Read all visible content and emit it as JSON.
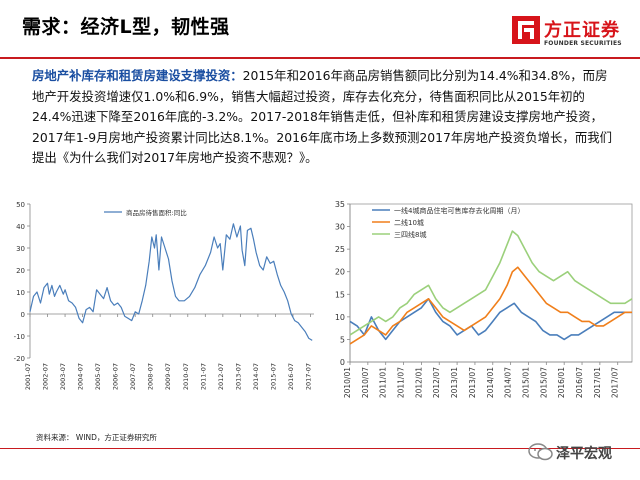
{
  "page": {
    "title": "需求：经济L型，韧性强",
    "logo": {
      "cn": "方正证券",
      "en": "FOUNDER SECURITIES"
    },
    "paragraph": {
      "highlight": "房地产补库存和租赁房建设支撑投资：",
      "body": "2015年和2016年商品房销售额同比分别为14.4%和34.8%，而房地产开发投资增速仅1.0%和6.9%，销售大幅超过投资，库存去化充分，待售面积同比从2015年初的24.4%迅速下降至2016年底的-3.2%。2017-2018年销售走低，但补库和租赁房建设支撑房地产投资，2017年1-9月房地产投资累计同比达8.1%。2016年底市场上多数预测2017年房地产投资负增长，而我们提出《为什么我们对2017年房地产投资不悲观？》。"
    },
    "source": "资料来源： WIND，方正证券研究所",
    "watermark": "泽平宏观"
  },
  "colors": {
    "brand": "#c81a1f",
    "highlight": "#1a4ea1",
    "s1": "#4a7ebb",
    "s2": "#f07f1b",
    "s3": "#9bd07b"
  },
  "chart_data": [
    {
      "type": "line",
      "title": "",
      "ylim": [
        -20,
        50
      ],
      "yticks": [
        -20,
        -10,
        0,
        10,
        20,
        30,
        40,
        50
      ],
      "xticks": [
        "2001-07",
        "2002-07",
        "2003-07",
        "2004-07",
        "2005-07",
        "2006-07",
        "2007-07",
        "2008-07",
        "2009-07",
        "2010-07",
        "2011-07",
        "2012-07",
        "2013-07",
        "2014-07",
        "2015-07",
        "2016-07",
        "2017-07"
      ],
      "xlim": [
        2001.5,
        2017.7
      ],
      "series": [
        {
          "name": "商品房待售面积:同比",
          "x": [
            2001.5,
            2001.7,
            2001.9,
            2002.1,
            2002.3,
            2002.5,
            2002.6,
            2002.75,
            2002.9,
            2003.0,
            2003.2,
            2003.4,
            2003.5,
            2003.7,
            2003.9,
            2004.1,
            2004.3,
            2004.5,
            2004.7,
            2004.9,
            2005.1,
            2005.3,
            2005.5,
            2005.7,
            2005.9,
            2006.1,
            2006.3,
            2006.5,
            2006.7,
            2006.9,
            2007.1,
            2007.3,
            2007.5,
            2007.7,
            2007.9,
            2008.1,
            2008.3,
            2008.45,
            2008.6,
            2008.7,
            2008.85,
            2009.0,
            2009.2,
            2009.4,
            2009.6,
            2009.8,
            2010.0,
            2010.3,
            2010.6,
            2010.9,
            2011.2,
            2011.5,
            2011.8,
            2012.0,
            2012.2,
            2012.35,
            2012.5,
            2012.7,
            2012.9,
            2013.1,
            2013.3,
            2013.5,
            2013.6,
            2013.75,
            2013.9,
            2014.1,
            2014.25,
            2014.4,
            2014.6,
            2014.8,
            2015.0,
            2015.2,
            2015.4,
            2015.6,
            2015.8,
            2016.0,
            2016.2,
            2016.4,
            2016.6,
            2016.8,
            2017.0,
            2017.2,
            2017.4,
            2017.6
          ],
          "values": [
            1,
            8,
            10,
            5,
            12,
            14,
            9,
            13,
            8,
            10,
            13,
            9,
            11,
            6,
            5,
            3,
            -2,
            -4,
            2,
            3,
            1,
            11,
            9,
            7,
            12,
            6,
            4,
            5,
            3,
            -1,
            -2,
            -3,
            1,
            0,
            6,
            13,
            24,
            35,
            30,
            36,
            20,
            35,
            30,
            25,
            15,
            8,
            6,
            6,
            8,
            12,
            18,
            22,
            28,
            35,
            30,
            32,
            20,
            36,
            34,
            41,
            35,
            40,
            29,
            22,
            38,
            39,
            34,
            28,
            22,
            20,
            26,
            23,
            24,
            18,
            13,
            10,
            6,
            0,
            -3,
            -4,
            -6,
            -8,
            -11,
            -12
          ]
        }
      ]
    },
    {
      "type": "line",
      "title": "",
      "ylim": [
        0,
        35
      ],
      "yticks": [
        0,
        5,
        10,
        15,
        20,
        25,
        30,
        35
      ],
      "xticks": [
        "2010/01",
        "2010/07",
        "2011/01",
        "2011/07",
        "2012/01",
        "2012/07",
        "2013/01",
        "2013/07",
        "2014/01",
        "2014/07",
        "2015/01",
        "2015/07",
        "2016/01",
        "2016/07",
        "2017/01",
        "2017/07"
      ],
      "xlim": [
        2010.0,
        2017.9
      ],
      "series": [
        {
          "name": "一线4城商品住宅可售库存去化周期（月）",
          "x": [
            2010.0,
            2010.2,
            2010.4,
            2010.5,
            2010.6,
            2010.8,
            2011.0,
            2011.2,
            2011.4,
            2011.6,
            2011.8,
            2012.0,
            2012.2,
            2012.4,
            2012.6,
            2012.8,
            2013.0,
            2013.2,
            2013.4,
            2013.6,
            2013.8,
            2014.0,
            2014.2,
            2014.4,
            2014.6,
            2014.8,
            2015.0,
            2015.2,
            2015.4,
            2015.6,
            2015.8,
            2016.0,
            2016.2,
            2016.4,
            2016.6,
            2016.8,
            2017.0,
            2017.2,
            2017.4,
            2017.6,
            2017.8,
            2017.9
          ],
          "values": [
            9,
            8,
            6,
            8,
            10,
            7,
            5,
            7,
            9,
            10,
            11,
            12,
            14,
            11,
            9,
            8,
            6,
            7,
            8,
            6,
            7,
            9,
            11,
            12,
            13,
            11,
            10,
            9,
            7,
            6,
            6,
            5,
            6,
            6,
            7,
            8,
            9,
            10,
            11,
            11,
            11,
            11
          ]
        },
        {
          "name": "二线10城",
          "x": [
            2010.0,
            2010.2,
            2010.4,
            2010.6,
            2010.8,
            2011.0,
            2011.2,
            2011.4,
            2011.6,
            2011.8,
            2012.0,
            2012.2,
            2012.4,
            2012.6,
            2012.8,
            2013.0,
            2013.2,
            2013.4,
            2013.6,
            2013.8,
            2014.0,
            2014.2,
            2014.4,
            2014.55,
            2014.7,
            2014.9,
            2015.1,
            2015.3,
            2015.5,
            2015.7,
            2015.9,
            2016.1,
            2016.3,
            2016.5,
            2016.7,
            2016.9,
            2017.1,
            2017.3,
            2017.5,
            2017.7,
            2017.9
          ],
          "values": [
            4,
            5,
            6,
            8,
            7,
            6,
            8,
            9,
            11,
            12,
            13,
            14,
            12,
            10,
            9,
            8,
            7,
            8,
            9,
            10,
            12,
            14,
            17,
            20,
            21,
            19,
            17,
            15,
            13,
            12,
            11,
            11,
            10,
            9,
            9,
            8,
            8,
            9,
            10,
            11,
            11
          ]
        },
        {
          "name": "三四线8城",
          "x": [
            2010.0,
            2010.2,
            2010.4,
            2010.6,
            2010.8,
            2011.0,
            2011.2,
            2011.4,
            2011.6,
            2011.8,
            2012.0,
            2012.2,
            2012.4,
            2012.6,
            2012.8,
            2013.0,
            2013.2,
            2013.4,
            2013.6,
            2013.8,
            2014.0,
            2014.2,
            2014.4,
            2014.55,
            2014.7,
            2014.9,
            2015.1,
            2015.3,
            2015.5,
            2015.7,
            2015.9,
            2016.1,
            2016.3,
            2016.5,
            2016.7,
            2016.9,
            2017.1,
            2017.3,
            2017.5,
            2017.7,
            2017.9
          ],
          "values": [
            6,
            7,
            8,
            9,
            10,
            9,
            10,
            12,
            13,
            15,
            16,
            17,
            14,
            12,
            11,
            12,
            13,
            14,
            15,
            16,
            19,
            22,
            26,
            29,
            28,
            25,
            22,
            20,
            19,
            18,
            19,
            20,
            18,
            17,
            16,
            15,
            14,
            13,
            13,
            13,
            14
          ]
        }
      ]
    }
  ]
}
